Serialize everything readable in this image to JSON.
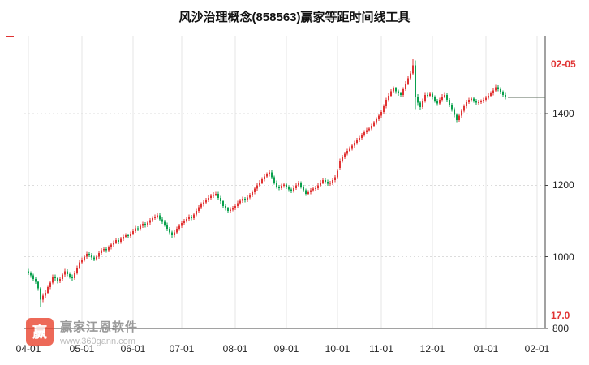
{
  "chart_data": {
    "type": "candlestick",
    "title": "风沙治理概念(858563)赢家等距时间线工具",
    "ylim": [
      800,
      1615
    ],
    "grid": true,
    "y_axis": {
      "side": "right",
      "ticks": [
        1400,
        1200,
        1000,
        800
      ]
    },
    "x_axis": {
      "tick_labels": [
        "04-01",
        "05-01",
        "06-01",
        "07-01",
        "08-01",
        "09-01",
        "10-01",
        "11-01",
        "12-01",
        "01-01",
        "02-01"
      ],
      "tick_indices": [
        0,
        22,
        43,
        63,
        85,
        106,
        127,
        145,
        166,
        188,
        209
      ]
    },
    "colors": {
      "up": "#e03333",
      "down": "#0aa04d",
      "grid": "#e5e5e5",
      "axis": "#444444",
      "annotation": "#e03333",
      "extension": "#5a6a5a"
    },
    "annotations": {
      "top_right_date": "02-05",
      "bottom_right_value": "17.0",
      "extension_line_value": 1445
    },
    "candles_ohlc": [
      [
        960,
        966,
        949,
        955
      ],
      [
        955,
        960,
        942,
        948
      ],
      [
        948,
        953,
        931,
        938
      ],
      [
        938,
        944,
        924,
        930
      ],
      [
        930,
        934,
        905,
        912
      ],
      [
        912,
        916,
        860,
        880
      ],
      [
        880,
        898,
        874,
        892
      ],
      [
        892,
        906,
        886,
        900
      ],
      [
        900,
        921,
        895,
        915
      ],
      [
        915,
        934,
        910,
        928
      ],
      [
        928,
        951,
        923,
        945
      ],
      [
        945,
        950,
        934,
        940
      ],
      [
        940,
        945,
        926,
        932
      ],
      [
        932,
        944,
        927,
        938
      ],
      [
        938,
        956,
        933,
        950
      ],
      [
        950,
        966,
        945,
        960
      ],
      [
        960,
        965,
        946,
        952
      ],
      [
        952,
        957,
        939,
        945
      ],
      [
        945,
        950,
        934,
        940
      ],
      [
        940,
        961,
        936,
        955
      ],
      [
        955,
        976,
        950,
        970
      ],
      [
        970,
        991,
        965,
        985
      ],
      [
        985,
        998,
        980,
        992
      ],
      [
        992,
        1006,
        987,
        1000
      ],
      [
        1000,
        1014,
        995,
        1008
      ],
      [
        1008,
        1013,
        999,
        1005
      ],
      [
        1005,
        1010,
        992,
        998
      ],
      [
        998,
        1003,
        988,
        994
      ],
      [
        994,
        1006,
        989,
        1000
      ],
      [
        1000,
        1016,
        995,
        1010
      ],
      [
        1010,
        1024,
        1005,
        1018
      ],
      [
        1018,
        1028,
        1013,
        1022
      ],
      [
        1022,
        1027,
        1012,
        1018
      ],
      [
        1018,
        1032,
        1013,
        1026
      ],
      [
        1026,
        1040,
        1021,
        1034
      ],
      [
        1034,
        1046,
        1029,
        1040
      ],
      [
        1040,
        1053,
        1035,
        1047
      ],
      [
        1047,
        1052,
        1036,
        1042
      ],
      [
        1042,
        1056,
        1037,
        1050
      ],
      [
        1050,
        1062,
        1045,
        1056
      ],
      [
        1056,
        1066,
        1051,
        1060
      ],
      [
        1060,
        1065,
        1052,
        1058
      ],
      [
        1058,
        1071,
        1053,
        1065
      ],
      [
        1065,
        1078,
        1060,
        1072
      ],
      [
        1072,
        1086,
        1067,
        1080
      ],
      [
        1080,
        1085,
        1072,
        1078
      ],
      [
        1078,
        1092,
        1073,
        1086
      ],
      [
        1086,
        1098,
        1081,
        1092
      ],
      [
        1092,
        1097,
        1082,
        1088
      ],
      [
        1088,
        1101,
        1083,
        1095
      ],
      [
        1095,
        1108,
        1090,
        1102
      ],
      [
        1102,
        1114,
        1097,
        1108
      ],
      [
        1108,
        1118,
        1103,
        1112
      ],
      [
        1112,
        1122,
        1107,
        1116
      ],
      [
        1116,
        1121,
        1099,
        1105
      ],
      [
        1105,
        1110,
        1092,
        1098
      ],
      [
        1098,
        1103,
        1084,
        1090
      ],
      [
        1090,
        1095,
        1072,
        1078
      ],
      [
        1078,
        1083,
        1062,
        1068
      ],
      [
        1068,
        1073,
        1054,
        1060
      ],
      [
        1060,
        1074,
        1055,
        1068
      ],
      [
        1068,
        1084,
        1063,
        1078
      ],
      [
        1078,
        1092,
        1073,
        1086
      ],
      [
        1086,
        1100,
        1081,
        1094
      ],
      [
        1094,
        1106,
        1089,
        1100
      ],
      [
        1100,
        1112,
        1095,
        1106
      ],
      [
        1106,
        1118,
        1101,
        1112
      ],
      [
        1112,
        1117,
        1102,
        1108
      ],
      [
        1108,
        1124,
        1103,
        1118
      ],
      [
        1118,
        1134,
        1113,
        1128
      ],
      [
        1128,
        1144,
        1123,
        1138
      ],
      [
        1138,
        1152,
        1133,
        1146
      ],
      [
        1146,
        1158,
        1141,
        1152
      ],
      [
        1152,
        1164,
        1147,
        1158
      ],
      [
        1158,
        1171,
        1153,
        1165
      ],
      [
        1165,
        1176,
        1160,
        1170
      ],
      [
        1170,
        1180,
        1165,
        1174
      ],
      [
        1174,
        1182,
        1169,
        1176
      ],
      [
        1176,
        1181,
        1159,
        1165
      ],
      [
        1165,
        1170,
        1149,
        1155
      ],
      [
        1155,
        1160,
        1136,
        1142
      ],
      [
        1142,
        1147,
        1129,
        1135
      ],
      [
        1135,
        1140,
        1122,
        1128
      ],
      [
        1128,
        1138,
        1123,
        1132
      ],
      [
        1132,
        1142,
        1127,
        1136
      ],
      [
        1136,
        1148,
        1131,
        1142
      ],
      [
        1142,
        1156,
        1137,
        1150
      ],
      [
        1150,
        1162,
        1145,
        1156
      ],
      [
        1156,
        1168,
        1151,
        1162
      ],
      [
        1162,
        1167,
        1152,
        1158
      ],
      [
        1158,
        1172,
        1153,
        1166
      ],
      [
        1166,
        1178,
        1161,
        1172
      ],
      [
        1172,
        1186,
        1167,
        1180
      ],
      [
        1180,
        1196,
        1175,
        1190
      ],
      [
        1190,
        1206,
        1185,
        1200
      ],
      [
        1200,
        1214,
        1195,
        1208
      ],
      [
        1208,
        1222,
        1203,
        1216
      ],
      [
        1216,
        1230,
        1211,
        1224
      ],
      [
        1224,
        1236,
        1219,
        1230
      ],
      [
        1230,
        1242,
        1225,
        1236
      ],
      [
        1236,
        1241,
        1216,
        1222
      ],
      [
        1222,
        1227,
        1202,
        1208
      ],
      [
        1208,
        1213,
        1190,
        1196
      ],
      [
        1196,
        1201,
        1186,
        1192
      ],
      [
        1192,
        1204,
        1187,
        1198
      ],
      [
        1198,
        1208,
        1193,
        1202
      ],
      [
        1202,
        1207,
        1189,
        1195
      ],
      [
        1195,
        1200,
        1182,
        1188
      ],
      [
        1188,
        1193,
        1178,
        1184
      ],
      [
        1184,
        1198,
        1179,
        1192
      ],
      [
        1192,
        1206,
        1187,
        1200
      ],
      [
        1200,
        1212,
        1195,
        1206
      ],
      [
        1206,
        1211,
        1190,
        1196
      ],
      [
        1196,
        1201,
        1180,
        1186
      ],
      [
        1186,
        1191,
        1170,
        1176
      ],
      [
        1176,
        1186,
        1171,
        1180
      ],
      [
        1180,
        1192,
        1175,
        1186
      ],
      [
        1186,
        1196,
        1181,
        1190
      ],
      [
        1190,
        1198,
        1185,
        1192
      ],
      [
        1192,
        1206,
        1187,
        1200
      ],
      [
        1200,
        1214,
        1195,
        1208
      ],
      [
        1208,
        1220,
        1203,
        1214
      ],
      [
        1214,
        1219,
        1204,
        1210
      ],
      [
        1210,
        1215,
        1198,
        1204
      ],
      [
        1204,
        1212,
        1199,
        1206
      ],
      [
        1206,
        1220,
        1201,
        1214
      ],
      [
        1214,
        1228,
        1209,
        1222
      ],
      [
        1222,
        1246,
        1217,
        1240
      ],
      [
        1248,
        1274,
        1243,
        1268
      ],
      [
        1268,
        1284,
        1263,
        1278
      ],
      [
        1278,
        1294,
        1273,
        1288
      ],
      [
        1288,
        1302,
        1283,
        1296
      ],
      [
        1296,
        1308,
        1291,
        1302
      ],
      [
        1302,
        1316,
        1297,
        1310
      ],
      [
        1310,
        1324,
        1305,
        1318
      ],
      [
        1318,
        1332,
        1313,
        1326
      ],
      [
        1326,
        1338,
        1321,
        1332
      ],
      [
        1332,
        1346,
        1327,
        1340
      ],
      [
        1340,
        1354,
        1335,
        1348
      ],
      [
        1348,
        1360,
        1343,
        1354
      ],
      [
        1354,
        1364,
        1349,
        1358
      ],
      [
        1358,
        1372,
        1353,
        1366
      ],
      [
        1366,
        1380,
        1361,
        1374
      ],
      [
        1374,
        1390,
        1369,
        1384
      ],
      [
        1384,
        1400,
        1379,
        1394
      ],
      [
        1394,
        1410,
        1389,
        1404
      ],
      [
        1404,
        1426,
        1399,
        1420
      ],
      [
        1420,
        1444,
        1415,
        1438
      ],
      [
        1438,
        1456,
        1433,
        1450
      ],
      [
        1450,
        1468,
        1445,
        1462
      ],
      [
        1462,
        1476,
        1457,
        1470
      ],
      [
        1470,
        1475,
        1455,
        1462
      ],
      [
        1462,
        1467,
        1450,
        1456
      ],
      [
        1456,
        1461,
        1446,
        1452
      ],
      [
        1452,
        1474,
        1447,
        1468
      ],
      [
        1468,
        1490,
        1463,
        1484
      ],
      [
        1484,
        1504,
        1479,
        1498
      ],
      [
        1498,
        1518,
        1493,
        1512
      ],
      [
        1512,
        1552,
        1507,
        1535
      ],
      [
        1535,
        1548,
        1412,
        1448
      ],
      [
        1448,
        1454,
        1422,
        1430
      ],
      [
        1430,
        1436,
        1410,
        1418
      ],
      [
        1418,
        1442,
        1413,
        1436
      ],
      [
        1436,
        1458,
        1431,
        1452
      ],
      [
        1452,
        1458,
        1444,
        1450
      ],
      [
        1450,
        1461,
        1445,
        1455
      ],
      [
        1455,
        1460,
        1440,
        1446
      ],
      [
        1446,
        1451,
        1430,
        1436
      ],
      [
        1436,
        1441,
        1422,
        1428
      ],
      [
        1428,
        1444,
        1423,
        1438
      ],
      [
        1438,
        1454,
        1433,
        1448
      ],
      [
        1448,
        1458,
        1443,
        1452
      ],
      [
        1452,
        1457,
        1432,
        1438
      ],
      [
        1438,
        1443,
        1418,
        1424
      ],
      [
        1424,
        1429,
        1406,
        1412
      ],
      [
        1412,
        1417,
        1390,
        1396
      ],
      [
        1396,
        1401,
        1374,
        1382
      ],
      [
        1382,
        1400,
        1377,
        1394
      ],
      [
        1394,
        1414,
        1389,
        1408
      ],
      [
        1408,
        1426,
        1403,
        1420
      ],
      [
        1420,
        1438,
        1415,
        1432
      ],
      [
        1432,
        1444,
        1427,
        1438
      ],
      [
        1438,
        1448,
        1433,
        1442
      ],
      [
        1442,
        1447,
        1430,
        1436
      ],
      [
        1436,
        1441,
        1424,
        1430
      ],
      [
        1430,
        1438,
        1425,
        1432
      ],
      [
        1432,
        1440,
        1427,
        1434
      ],
      [
        1434,
        1444,
        1429,
        1438
      ],
      [
        1438,
        1450,
        1433,
        1444
      ],
      [
        1444,
        1456,
        1439,
        1450
      ],
      [
        1450,
        1462,
        1445,
        1456
      ],
      [
        1456,
        1471,
        1451,
        1465
      ],
      [
        1465,
        1480,
        1460,
        1474
      ],
      [
        1474,
        1479,
        1462,
        1468
      ],
      [
        1468,
        1473,
        1454,
        1460
      ],
      [
        1460,
        1465,
        1446,
        1452
      ],
      [
        1452,
        1458,
        1440,
        1445
      ]
    ]
  },
  "watermark": {
    "logo_text": "赢",
    "name": "赢家江恩软件",
    "url": "www.360gann.com"
  }
}
